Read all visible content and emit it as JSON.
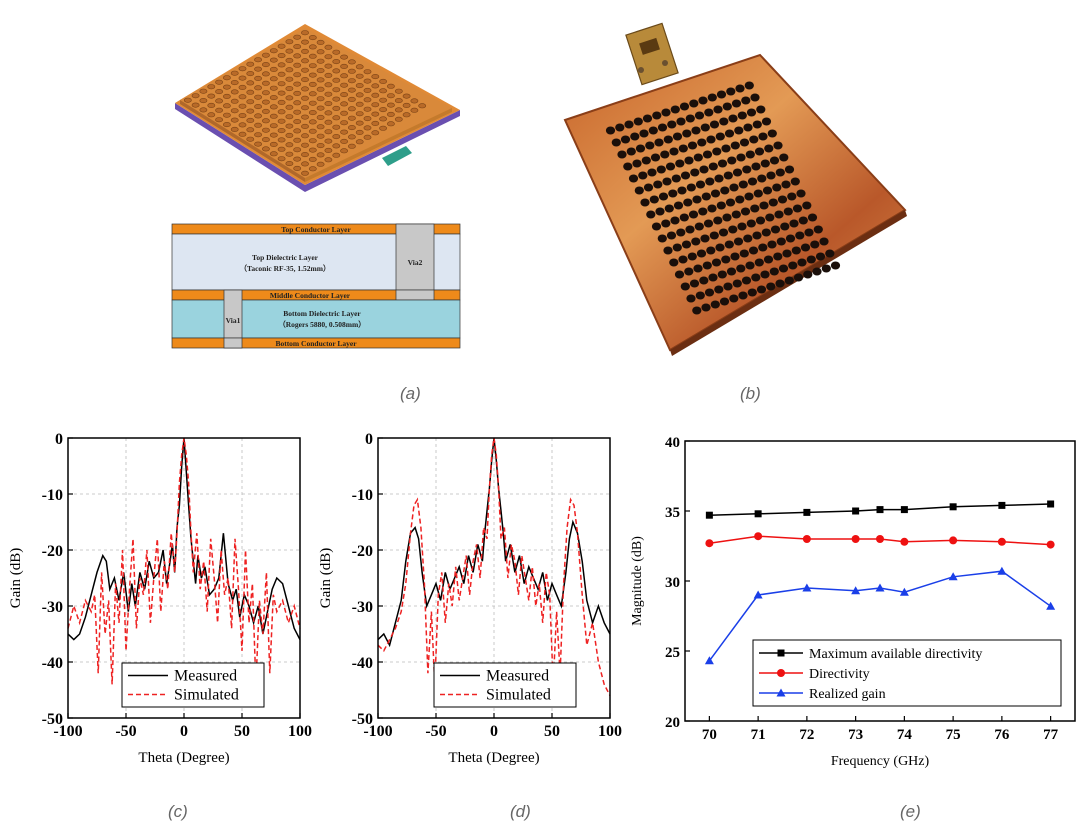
{
  "captions": [
    "(a)",
    "(b)",
    "(c)",
    "(d)",
    "(e)"
  ],
  "figure_a": {
    "layers": {
      "top_conductor": "Top Conductor Layer",
      "top_dielectric": "Top Dielectric Layer",
      "top_dielectric_spec": "（Taconic RF-35, 1.52mm）",
      "via2": "Via2",
      "middle_conductor": "Middle Conductor Layer",
      "via1": "Via1",
      "bottom_dielectric": "Bottom Dielectric Layer",
      "bottom_dielectric_spec": "（Rogers 5880, 0.508mm）",
      "bottom_conductor": "Bottom Conductor Layer"
    },
    "colors": {
      "conductor": "#ee8a1a",
      "top_dielectric": "#dde6f2",
      "bottom_dielectric": "#9ad3de",
      "via": "#c8c8c8",
      "board": "#d9893a",
      "edge": "#6a4fb0"
    }
  },
  "chart_data": [
    {
      "type": "line",
      "panel": "c",
      "xlabel": "Theta (Degree)",
      "ylabel": "Gain (dB)",
      "xlim": [
        -100,
        100
      ],
      "ylim": [
        -50,
        0
      ],
      "xticks": [
        "-100",
        "-50",
        "0",
        "50",
        "100"
      ],
      "yticks": [
        "0",
        "-10",
        "-20",
        "-30",
        "-40",
        "-50"
      ],
      "grid": true,
      "legend_position": "bottom-center",
      "series": [
        {
          "name": "Measured",
          "color": "#000000",
          "dash": "solid",
          "x": [
            -100,
            -95,
            -90,
            -85,
            -80,
            -75,
            -70,
            -67,
            -64,
            -60,
            -56,
            -52,
            -48,
            -45,
            -42,
            -38,
            -34,
            -30,
            -26,
            -22,
            -18,
            -15,
            -12,
            -10,
            -8,
            -6,
            -4,
            -2,
            0,
            2,
            4,
            6,
            8,
            10,
            12,
            15,
            18,
            22,
            26,
            30,
            34,
            38,
            42,
            45,
            48,
            52,
            56,
            60,
            64,
            68,
            72,
            76,
            80,
            85,
            90,
            95,
            100
          ],
          "y": [
            -35,
            -36,
            -35,
            -32,
            -28,
            -24,
            -21,
            -22,
            -27,
            -25,
            -29,
            -24,
            -31,
            -26,
            -30,
            -24,
            -27,
            -22,
            -25,
            -24,
            -20,
            -26,
            -22,
            -19,
            -24,
            -16,
            -12,
            -5,
            0,
            -6,
            -12,
            -18,
            -22,
            -26,
            -21,
            -25,
            -23,
            -28,
            -27,
            -25,
            -17,
            -26,
            -29,
            -27,
            -32,
            -28,
            -30,
            -33,
            -30,
            -35,
            -31,
            -27,
            -25,
            -26,
            -30,
            -34,
            -36
          ]
        },
        {
          "name": "Simulated",
          "color": "#ee2222",
          "dash": "dashed",
          "x": [
            -100,
            -95,
            -90,
            -85,
            -80,
            -77,
            -74,
            -71,
            -68,
            -65,
            -62,
            -59,
            -56,
            -53,
            -50,
            -47,
            -44,
            -41,
            -38,
            -35,
            -32,
            -29,
            -26,
            -23,
            -20,
            -17,
            -14,
            -11,
            -8,
            -6,
            -4,
            -2,
            0,
            2,
            4,
            6,
            8,
            11,
            14,
            17,
            20,
            23,
            26,
            29,
            32,
            35,
            38,
            41,
            44,
            47,
            50,
            53,
            56,
            59,
            62,
            65,
            68,
            71,
            74,
            77,
            80,
            85,
            90,
            95,
            100
          ],
          "y": [
            -34,
            -30,
            -33,
            -29,
            -31,
            -28,
            -42,
            -24,
            -35,
            -29,
            -44,
            -26,
            -33,
            -20,
            -38,
            -27,
            -18,
            -34,
            -25,
            -28,
            -20,
            -33,
            -25,
            -18,
            -31,
            -22,
            -27,
            -17,
            -24,
            -17,
            -8,
            -3,
            0,
            -3,
            -8,
            -17,
            -24,
            -17,
            -27,
            -22,
            -31,
            -18,
            -25,
            -33,
            -20,
            -28,
            -25,
            -34,
            -18,
            -27,
            -38,
            -20,
            -33,
            -26,
            -44,
            -29,
            -35,
            -24,
            -42,
            -28,
            -31,
            -29,
            -33,
            -30,
            -34
          ]
        }
      ]
    },
    {
      "type": "line",
      "panel": "d",
      "xlabel": "Theta (Degree)",
      "ylabel": "Gain (dB)",
      "xlim": [
        -100,
        100
      ],
      "ylim": [
        -50,
        0
      ],
      "xticks": [
        "-100",
        "-50",
        "0",
        "50",
        "100"
      ],
      "yticks": [
        "0",
        "-10",
        "-20",
        "-30",
        "-40",
        "-50"
      ],
      "grid": true,
      "legend_position": "bottom-center",
      "series": [
        {
          "name": "Measured",
          "color": "#000000",
          "dash": "solid",
          "x": [
            -100,
            -95,
            -90,
            -85,
            -80,
            -76,
            -72,
            -68,
            -65,
            -62,
            -58,
            -54,
            -50,
            -46,
            -42,
            -38,
            -34,
            -30,
            -26,
            -22,
            -18,
            -14,
            -10,
            -8,
            -6,
            -4,
            -2,
            0,
            2,
            4,
            6,
            8,
            10,
            14,
            18,
            22,
            26,
            30,
            34,
            38,
            42,
            46,
            50,
            54,
            58,
            62,
            65,
            68,
            72,
            76,
            80,
            85,
            90,
            95,
            100
          ],
          "y": [
            -36,
            -35,
            -37,
            -33,
            -29,
            -22,
            -17,
            -16,
            -18,
            -24,
            -30,
            -28,
            -26,
            -29,
            -24,
            -27,
            -25,
            -23,
            -26,
            -21,
            -24,
            -19,
            -22,
            -17,
            -13,
            -9,
            -4,
            0,
            -4,
            -9,
            -13,
            -17,
            -22,
            -19,
            -24,
            -21,
            -26,
            -23,
            -25,
            -27,
            -24,
            -29,
            -26,
            -28,
            -30,
            -24,
            -18,
            -15,
            -17,
            -22,
            -29,
            -33,
            -30,
            -33,
            -35
          ]
        },
        {
          "name": "Simulated",
          "color": "#ee2222",
          "dash": "dashed",
          "x": [
            -100,
            -95,
            -90,
            -85,
            -80,
            -76,
            -72,
            -69,
            -66,
            -63,
            -60,
            -57,
            -54,
            -51,
            -48,
            -45,
            -42,
            -39,
            -36,
            -33,
            -30,
            -27,
            -24,
            -21,
            -18,
            -15,
            -12,
            -9,
            -6,
            -4,
            -2,
            0,
            2,
            4,
            6,
            9,
            12,
            15,
            18,
            21,
            24,
            27,
            30,
            33,
            36,
            39,
            42,
            45,
            48,
            51,
            54,
            57,
            60,
            63,
            66,
            69,
            72,
            76,
            80,
            85,
            90,
            95,
            100
          ],
          "y": [
            -37,
            -38,
            -36,
            -34,
            -31,
            -26,
            -17,
            -12,
            -11,
            -16,
            -26,
            -42,
            -31,
            -44,
            -28,
            -24,
            -33,
            -26,
            -30,
            -23,
            -29,
            -25,
            -21,
            -28,
            -22,
            -19,
            -25,
            -16,
            -18,
            -9,
            -3,
            0,
            -3,
            -9,
            -18,
            -16,
            -25,
            -19,
            -22,
            -28,
            -21,
            -25,
            -29,
            -23,
            -30,
            -26,
            -33,
            -24,
            -28,
            -44,
            -31,
            -42,
            -26,
            -16,
            -11,
            -12,
            -17,
            -28,
            -37,
            -33,
            -40,
            -44,
            -46
          ]
        }
      ]
    },
    {
      "type": "line",
      "panel": "e",
      "xlabel": "Frequency (GHz)",
      "ylabel": "Magnitude (dB)",
      "xlim": [
        69.5,
        77.5
      ],
      "ylim": [
        20,
        40
      ],
      "xticks": [
        70,
        71,
        72,
        73,
        74,
        75,
        76,
        77
      ],
      "yticks": [
        20,
        25,
        30,
        35,
        40
      ],
      "grid": false,
      "legend_position": "bottom-right",
      "series": [
        {
          "name": "Maximum available directivity",
          "color": "#000000",
          "marker": "square",
          "x": [
            70,
            71,
            72,
            73,
            73.5,
            74,
            75,
            76,
            77
          ],
          "y": [
            34.7,
            34.8,
            34.9,
            35.0,
            35.1,
            35.1,
            35.3,
            35.4,
            35.5
          ]
        },
        {
          "name": "Directivity",
          "color": "#ee1111",
          "marker": "circle",
          "x": [
            70,
            71,
            72,
            73,
            73.5,
            74,
            75,
            76,
            77
          ],
          "y": [
            32.7,
            33.2,
            33.0,
            33.0,
            33.0,
            32.8,
            32.9,
            32.8,
            32.6
          ]
        },
        {
          "name": "Realized gain",
          "color": "#1a3fe8",
          "marker": "triangle",
          "x": [
            70,
            71,
            72,
            73,
            73.5,
            74,
            75,
            76,
            77
          ],
          "y": [
            24.3,
            29.0,
            29.5,
            29.3,
            29.5,
            29.2,
            30.3,
            30.7,
            28.2
          ]
        }
      ]
    }
  ]
}
